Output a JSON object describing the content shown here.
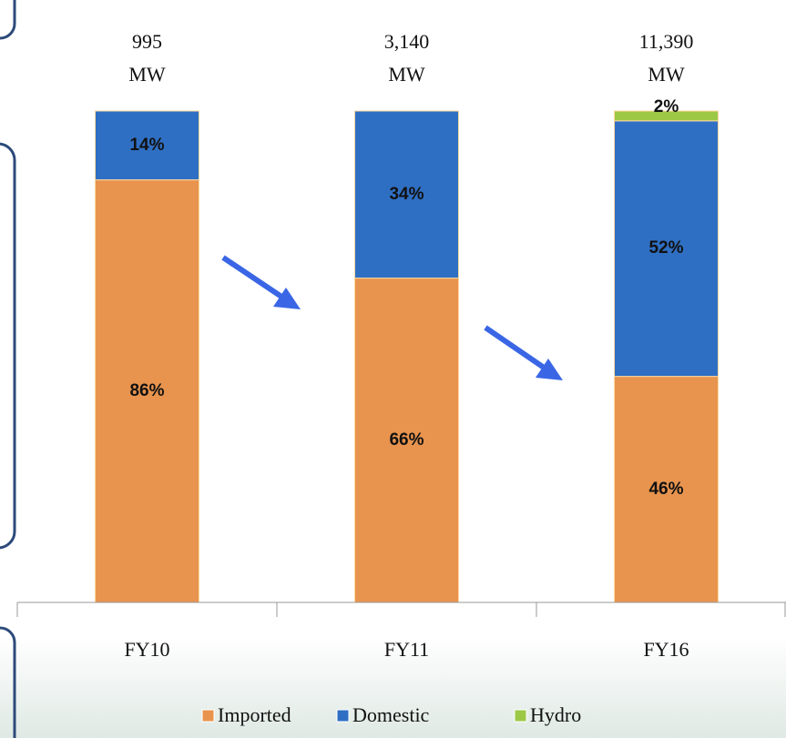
{
  "chart_data": {
    "type": "stacked_bar",
    "categories": [
      "FY10",
      "FY11",
      "FY16"
    ],
    "series": [
      {
        "name": "Imported",
        "color": "#e8944e",
        "values": [
          86,
          66,
          46
        ],
        "value_labels": [
          "86%",
          "66%",
          "46%"
        ]
      },
      {
        "name": "Domestic",
        "color": "#2f6fc3",
        "values": [
          14,
          34,
          52
        ],
        "value_labels": [
          "14%",
          "34%",
          "52%"
        ]
      },
      {
        "name": "Hydro",
        "color": "#9cc846",
        "values": [
          0,
          0,
          2
        ],
        "value_labels": [
          null,
          null,
          "2%"
        ]
      }
    ],
    "totals": [
      {
        "value": 995,
        "label": "995"
      },
      {
        "value": 3140,
        "label": "3,140"
      },
      {
        "value": 11390,
        "label": "11,390"
      }
    ],
    "totals_unit": "MW",
    "ylim": [
      0,
      100
    ],
    "legend": "bottom"
  }
}
